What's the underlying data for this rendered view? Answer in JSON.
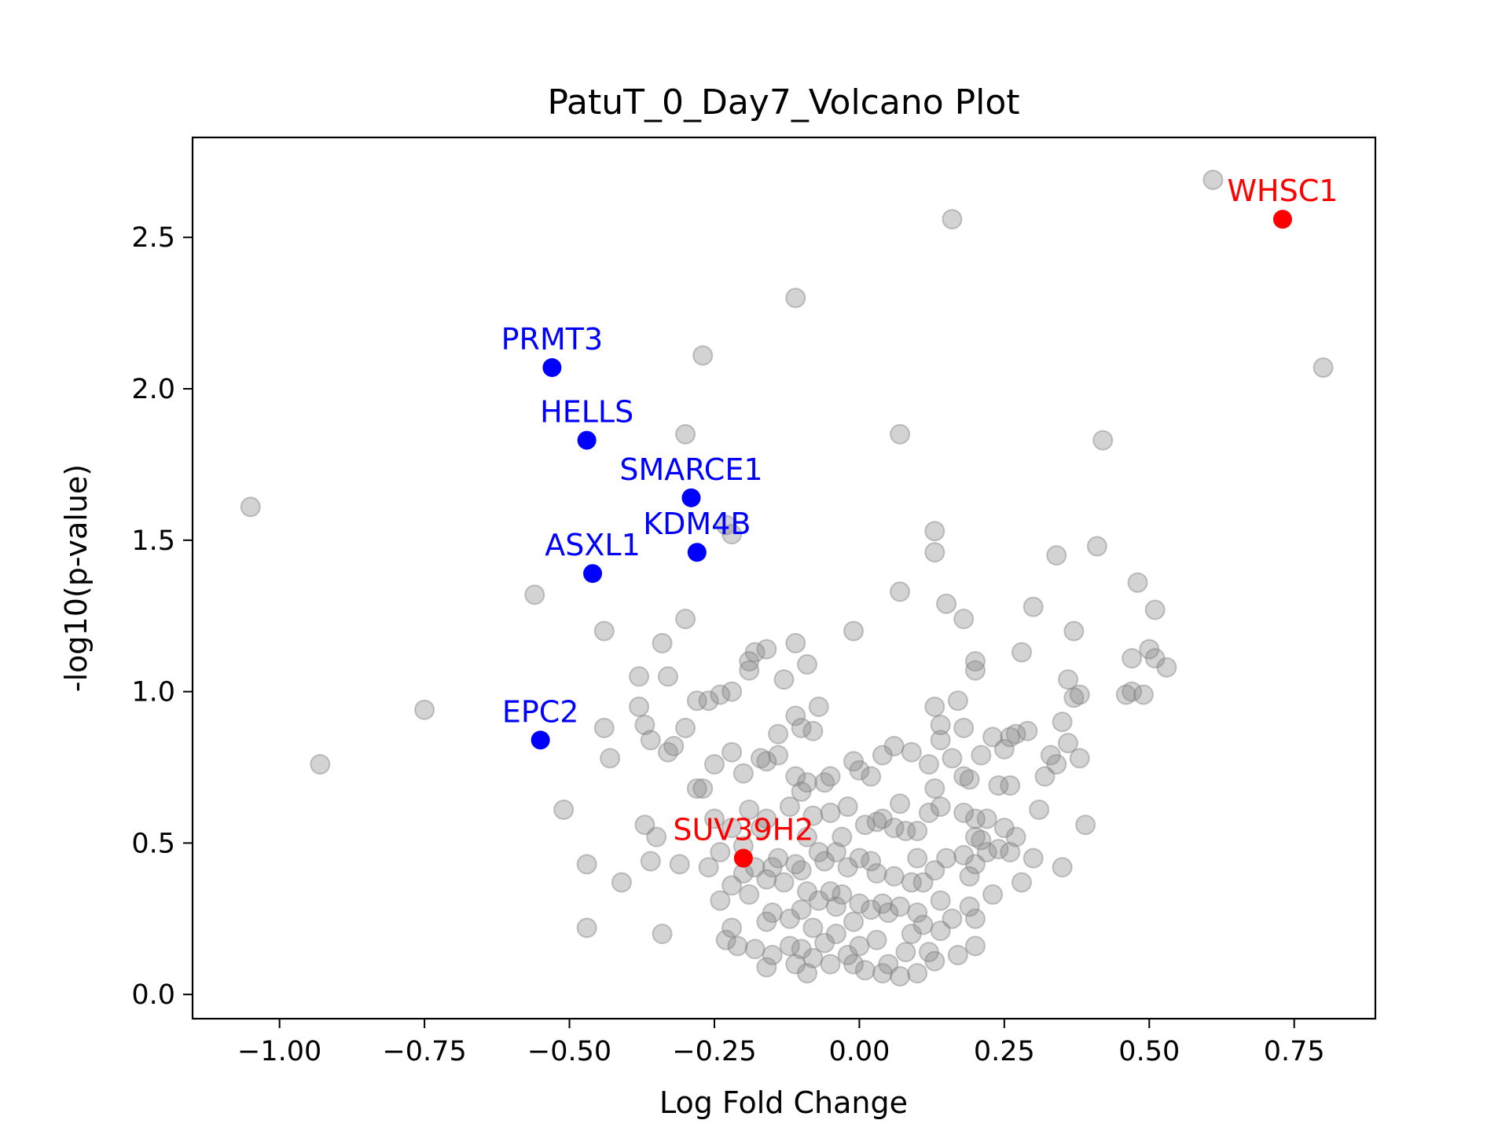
{
  "chart_data": {
    "type": "scatter",
    "title": "PatuT_0_Day7_Volcano Plot",
    "xlabel": "Log Fold Change",
    "ylabel": "-log10(p-value)",
    "xlim": [
      -1.15,
      0.89
    ],
    "ylim": [
      -0.08,
      2.83
    ],
    "xticks": [
      -1.0,
      -0.75,
      -0.5,
      -0.25,
      0.0,
      0.25,
      0.5,
      0.75
    ],
    "xtick_labels": [
      "−1.00",
      "−0.75",
      "−0.50",
      "−0.25",
      "0.00",
      "0.25",
      "0.50",
      "0.75"
    ],
    "yticks": [
      0.0,
      0.5,
      1.0,
      1.5,
      2.0,
      2.5
    ],
    "ytick_labels": [
      "0.0",
      "0.5",
      "1.0",
      "1.5",
      "2.0",
      "2.5"
    ],
    "colors": {
      "background": "#808080",
      "up": "#ff0000",
      "down": "#0000ff"
    },
    "background_points": [
      [
        -1.05,
        1.61
      ],
      [
        -0.93,
        0.76
      ],
      [
        -0.75,
        0.94
      ],
      [
        -0.56,
        1.32
      ],
      [
        -0.51,
        0.61
      ],
      [
        -0.47,
        0.43
      ],
      [
        -0.47,
        0.22
      ],
      [
        -0.44,
        1.2
      ],
      [
        -0.44,
        0.88
      ],
      [
        -0.43,
        0.78
      ],
      [
        -0.41,
        0.37
      ],
      [
        -0.38,
        1.05
      ],
      [
        -0.38,
        0.95
      ],
      [
        -0.37,
        0.89
      ],
      [
        -0.37,
        0.56
      ],
      [
        -0.36,
        0.84
      ],
      [
        -0.36,
        0.44
      ],
      [
        -0.35,
        0.52
      ],
      [
        -0.34,
        1.16
      ],
      [
        -0.34,
        0.2
      ],
      [
        -0.33,
        1.05
      ],
      [
        -0.33,
        0.8
      ],
      [
        -0.32,
        0.82
      ],
      [
        -0.31,
        0.43
      ],
      [
        -0.3,
        0.88
      ],
      [
        -0.3,
        1.24
      ],
      [
        -0.3,
        1.85
      ],
      [
        -0.28,
        0.97
      ],
      [
        -0.28,
        0.68
      ],
      [
        -0.27,
        2.11
      ],
      [
        -0.27,
        0.68
      ],
      [
        -0.26,
        0.97
      ],
      [
        -0.26,
        0.42
      ],
      [
        -0.25,
        0.76
      ],
      [
        -0.25,
        0.58
      ],
      [
        -0.24,
        0.99
      ],
      [
        -0.24,
        0.47
      ],
      [
        -0.24,
        0.31
      ],
      [
        -0.23,
        0.18
      ],
      [
        -0.23,
        1.55
      ],
      [
        -0.22,
        1.52
      ],
      [
        -0.22,
        1.0
      ],
      [
        -0.22,
        0.8
      ],
      [
        -0.22,
        0.55
      ],
      [
        -0.22,
        0.36
      ],
      [
        -0.22,
        0.22
      ],
      [
        -0.21,
        0.16
      ],
      [
        -0.2,
        0.73
      ],
      [
        -0.2,
        0.49
      ],
      [
        -0.2,
        0.4
      ],
      [
        -0.19,
        1.1
      ],
      [
        -0.19,
        1.07
      ],
      [
        -0.19,
        0.61
      ],
      [
        -0.19,
        0.33
      ],
      [
        -0.18,
        1.13
      ],
      [
        -0.18,
        0.42
      ],
      [
        -0.18,
        0.15
      ],
      [
        -0.17,
        0.78
      ],
      [
        -0.17,
        0.55
      ],
      [
        -0.16,
        1.14
      ],
      [
        -0.16,
        0.77
      ],
      [
        -0.16,
        0.58
      ],
      [
        -0.16,
        0.38
      ],
      [
        -0.16,
        0.24
      ],
      [
        -0.16,
        0.09
      ],
      [
        -0.15,
        0.42
      ],
      [
        -0.15,
        0.27
      ],
      [
        -0.15,
        0.13
      ],
      [
        -0.14,
        0.86
      ],
      [
        -0.14,
        0.79
      ],
      [
        -0.14,
        0.45
      ],
      [
        -0.13,
        0.37
      ],
      [
        -0.13,
        1.04
      ],
      [
        -0.12,
        0.62
      ],
      [
        -0.12,
        0.25
      ],
      [
        -0.12,
        0.16
      ],
      [
        -0.11,
        2.3
      ],
      [
        -0.11,
        1.16
      ],
      [
        -0.11,
        0.92
      ],
      [
        -0.11,
        0.72
      ],
      [
        -0.11,
        0.43
      ],
      [
        -0.11,
        0.1
      ],
      [
        -0.1,
        0.88
      ],
      [
        -0.1,
        0.67
      ],
      [
        -0.1,
        0.41
      ],
      [
        -0.1,
        0.28
      ],
      [
        -0.1,
        0.15
      ],
      [
        -0.09,
        1.09
      ],
      [
        -0.09,
        0.7
      ],
      [
        -0.09,
        0.52
      ],
      [
        -0.09,
        0.34
      ],
      [
        -0.09,
        0.07
      ],
      [
        -0.08,
        0.87
      ],
      [
        -0.08,
        0.59
      ],
      [
        -0.08,
        0.22
      ],
      [
        -0.08,
        0.12
      ],
      [
        -0.07,
        0.95
      ],
      [
        -0.07,
        0.47
      ],
      [
        -0.07,
        0.31
      ],
      [
        -0.06,
        0.7
      ],
      [
        -0.06,
        0.44
      ],
      [
        -0.06,
        0.17
      ],
      [
        -0.05,
        0.72
      ],
      [
        -0.05,
        0.6
      ],
      [
        -0.05,
        0.34
      ],
      [
        -0.05,
        0.1
      ],
      [
        -0.04,
        0.47
      ],
      [
        -0.04,
        0.29
      ],
      [
        -0.04,
        0.2
      ],
      [
        -0.03,
        0.52
      ],
      [
        -0.03,
        0.33
      ],
      [
        -0.02,
        0.62
      ],
      [
        -0.02,
        0.42
      ],
      [
        -0.02,
        0.13
      ],
      [
        -0.01,
        1.2
      ],
      [
        -0.01,
        0.77
      ],
      [
        -0.01,
        0.24
      ],
      [
        -0.01,
        0.1
      ],
      [
        0.0,
        0.74
      ],
      [
        0.0,
        0.45
      ],
      [
        0.0,
        0.3
      ],
      [
        0.0,
        0.16
      ],
      [
        0.01,
        0.56
      ],
      [
        0.01,
        0.08
      ],
      [
        0.02,
        0.72
      ],
      [
        0.02,
        0.44
      ],
      [
        0.02,
        0.28
      ],
      [
        0.03,
        0.57
      ],
      [
        0.03,
        0.4
      ],
      [
        0.03,
        0.18
      ],
      [
        0.04,
        0.79
      ],
      [
        0.04,
        0.58
      ],
      [
        0.04,
        0.3
      ],
      [
        0.04,
        0.07
      ],
      [
        0.05,
        0.27
      ],
      [
        0.05,
        0.1
      ],
      [
        0.06,
        0.82
      ],
      [
        0.06,
        0.55
      ],
      [
        0.06,
        0.39
      ],
      [
        0.07,
        1.85
      ],
      [
        0.07,
        0.63
      ],
      [
        0.07,
        1.33
      ],
      [
        0.07,
        0.29
      ],
      [
        0.07,
        0.06
      ],
      [
        0.08,
        0.54
      ],
      [
        0.08,
        0.14
      ],
      [
        0.09,
        0.8
      ],
      [
        0.09,
        0.37
      ],
      [
        0.09,
        0.2
      ],
      [
        0.1,
        0.54
      ],
      [
        0.1,
        0.45
      ],
      [
        0.1,
        0.27
      ],
      [
        0.1,
        0.07
      ],
      [
        0.11,
        0.37
      ],
      [
        0.11,
        0.23
      ],
      [
        0.12,
        0.76
      ],
      [
        0.12,
        0.6
      ],
      [
        0.12,
        0.14
      ],
      [
        0.13,
        1.53
      ],
      [
        0.13,
        1.46
      ],
      [
        0.13,
        0.95
      ],
      [
        0.13,
        0.68
      ],
      [
        0.13,
        0.41
      ],
      [
        0.13,
        0.11
      ],
      [
        0.14,
        0.89
      ],
      [
        0.14,
        0.84
      ],
      [
        0.14,
        0.62
      ],
      [
        0.14,
        0.31
      ],
      [
        0.14,
        0.21
      ],
      [
        0.15,
        1.29
      ],
      [
        0.15,
        0.45
      ],
      [
        0.16,
        2.56
      ],
      [
        0.16,
        0.78
      ],
      [
        0.16,
        0.25
      ],
      [
        0.17,
        0.97
      ],
      [
        0.17,
        0.13
      ],
      [
        0.18,
        1.24
      ],
      [
        0.18,
        0.88
      ],
      [
        0.18,
        0.72
      ],
      [
        0.18,
        0.6
      ],
      [
        0.18,
        0.46
      ],
      [
        0.19,
        0.71
      ],
      [
        0.19,
        0.39
      ],
      [
        0.19,
        0.29
      ],
      [
        0.2,
        1.1
      ],
      [
        0.2,
        1.07
      ],
      [
        0.2,
        0.58
      ],
      [
        0.2,
        0.52
      ],
      [
        0.2,
        0.43
      ],
      [
        0.2,
        0.25
      ],
      [
        0.2,
        0.16
      ],
      [
        0.21,
        0.79
      ],
      [
        0.21,
        0.51
      ],
      [
        0.22,
        0.58
      ],
      [
        0.22,
        0.47
      ],
      [
        0.23,
        0.85
      ],
      [
        0.23,
        0.33
      ],
      [
        0.24,
        0.69
      ],
      [
        0.24,
        0.48
      ],
      [
        0.25,
        0.81
      ],
      [
        0.25,
        0.55
      ],
      [
        0.26,
        0.85
      ],
      [
        0.26,
        0.69
      ],
      [
        0.26,
        0.47
      ],
      [
        0.27,
        0.52
      ],
      [
        0.27,
        0.86
      ],
      [
        0.28,
        1.13
      ],
      [
        0.28,
        0.37
      ],
      [
        0.29,
        0.87
      ],
      [
        0.3,
        1.28
      ],
      [
        0.3,
        0.45
      ],
      [
        0.31,
        0.61
      ],
      [
        0.32,
        0.72
      ],
      [
        0.33,
        0.79
      ],
      [
        0.34,
        1.45
      ],
      [
        0.34,
        0.76
      ],
      [
        0.35,
        0.42
      ],
      [
        0.35,
        0.9
      ],
      [
        0.36,
        1.04
      ],
      [
        0.36,
        0.83
      ],
      [
        0.37,
        1.2
      ],
      [
        0.37,
        0.98
      ],
      [
        0.38,
        0.99
      ],
      [
        0.38,
        0.78
      ],
      [
        0.39,
        0.56
      ],
      [
        0.41,
        1.48
      ],
      [
        0.42,
        1.83
      ],
      [
        0.46,
        0.99
      ],
      [
        0.47,
        1.11
      ],
      [
        0.47,
        1.0
      ],
      [
        0.48,
        1.36
      ],
      [
        0.49,
        0.99
      ],
      [
        0.5,
        1.14
      ],
      [
        0.51,
        1.11
      ],
      [
        0.51,
        1.27
      ],
      [
        0.53,
        1.08
      ],
      [
        0.61,
        2.69
      ],
      [
        0.8,
        2.07
      ]
    ],
    "highlighted": [
      {
        "gene": "WHSC1",
        "x": 0.73,
        "y": 2.56,
        "color": "#ff0000"
      },
      {
        "gene": "SUV39H2",
        "x": -0.2,
        "y": 0.45,
        "color": "#ff0000"
      },
      {
        "gene": "PRMT3",
        "x": -0.53,
        "y": 2.07,
        "color": "#0000ff"
      },
      {
        "gene": "HELLS",
        "x": -0.47,
        "y": 1.83,
        "color": "#0000ff"
      },
      {
        "gene": "SMARCE1",
        "x": -0.29,
        "y": 1.64,
        "color": "#0000ff"
      },
      {
        "gene": "KDM4B",
        "x": -0.28,
        "y": 1.46,
        "color": "#0000ff"
      },
      {
        "gene": "ASXL1",
        "x": -0.46,
        "y": 1.39,
        "color": "#0000ff"
      },
      {
        "gene": "EPC2",
        "x": -0.55,
        "y": 0.84,
        "color": "#0000ff"
      }
    ]
  }
}
